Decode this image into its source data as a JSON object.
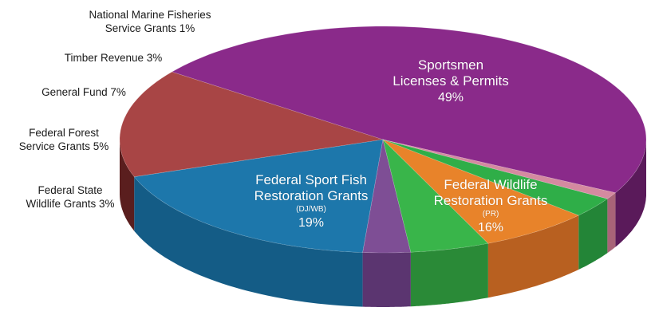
{
  "chart_data": {
    "type": "pie",
    "title": "",
    "slices": [
      {
        "label": "Sportsmen Licenses & Permits",
        "label_line1": "Sportsmen",
        "label_line2": "Licenses & Permits",
        "value": 49,
        "pct_text": "49%",
        "color": "#8a2a8a",
        "side_color": "#5a1a5a"
      },
      {
        "label": "Federal Wildlife Restoration Grants (PR)",
        "label_line1": "Federal Wildlife",
        "label_line2": "Restoration Grants",
        "sub": "(PR)",
        "value": 16,
        "pct_text": "16%",
        "color": "#a84545",
        "side_color": "#5a1e1e"
      },
      {
        "label": "Federal Sport Fish Restoration Grants (DJ/WB)",
        "label_line1": "Federal Sport Fish",
        "label_line2": "Restoration Grants",
        "sub": "(DJ/WB)",
        "value": 19,
        "pct_text": "19%",
        "color": "#1d77ab",
        "side_color": "#145c86"
      },
      {
        "label": "Federal State Wildlife Grants 3%",
        "label_line1": "Federal State",
        "label_line2": "Wildlife Grants 3%",
        "value": 3,
        "color": "#7e4e95",
        "side_color": "#5b3570"
      },
      {
        "label": "Federal Forest Service Grants 5%",
        "label_line1": "Federal Forest",
        "label_line2": "Service Grants 5%",
        "value": 5,
        "color": "#39b54a",
        "side_color": "#2a8a37"
      },
      {
        "label": "General Fund 7%",
        "label_line1": "General Fund 7%",
        "value": 7,
        "color": "#e8832a",
        "side_color": "#b86020"
      },
      {
        "label": "Timber Revenue 3%",
        "label_line1": "Timber Revenue 3%",
        "value": 3,
        "color": "#2fae48",
        "side_color": "#238537"
      },
      {
        "label": "National Marine Fisheries Service Grants 1%",
        "label_line1": "National Marine Fisheries",
        "label_line2": "Service Grants 1%",
        "value": 1,
        "color": "#d48aa0",
        "side_color": "#a86478"
      }
    ]
  }
}
